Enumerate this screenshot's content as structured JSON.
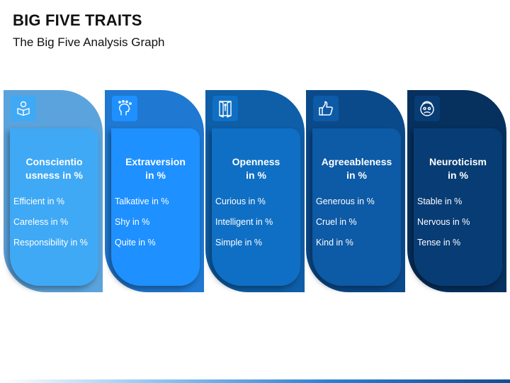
{
  "title": "BIG FIVE TRAITS",
  "subtitle": "The Big Five Analysis Graph",
  "cards": [
    {
      "name_line1": "Conscientio",
      "name_line2": "usness in %",
      "icon": "reading-person-icon",
      "outer_color": "#5ba3dc",
      "inner_color": "#3fa9f5",
      "items": [
        "Efficient in %",
        "Careless in %",
        "Responsibility in %"
      ]
    },
    {
      "name_line1": "Extraversion",
      "name_line2": "in %",
      "icon": "head-ideas-icon",
      "outer_color": "#1f78d1",
      "inner_color": "#1e90ff",
      "items": [
        "Talkative in %",
        "Shy in %",
        "Quite in %"
      ]
    },
    {
      "name_line1": "Openness",
      "name_line2": "in %",
      "icon": "open-door-icon",
      "outer_color": "#0e5ea8",
      "inner_color": "#0f6fc4",
      "items": [
        "Curious in %",
        "Intelligent in %",
        "Simple in %"
      ]
    },
    {
      "name_line1": "Agreeableness",
      "name_line2": "in %",
      "icon": "thumbs-up-icon",
      "outer_color": "#0b4a8a",
      "inner_color": "#0d5aa6",
      "items": [
        "Generous in %",
        "Cruel in %",
        "Kind in %"
      ]
    },
    {
      "name_line1": "Neuroticism",
      "name_line2": "in %",
      "icon": "worried-face-icon",
      "outer_color": "#06305e",
      "inner_color": "#083c75",
      "items": [
        "Stable in %",
        "Nervous in %",
        "Tense in %"
      ]
    }
  ]
}
